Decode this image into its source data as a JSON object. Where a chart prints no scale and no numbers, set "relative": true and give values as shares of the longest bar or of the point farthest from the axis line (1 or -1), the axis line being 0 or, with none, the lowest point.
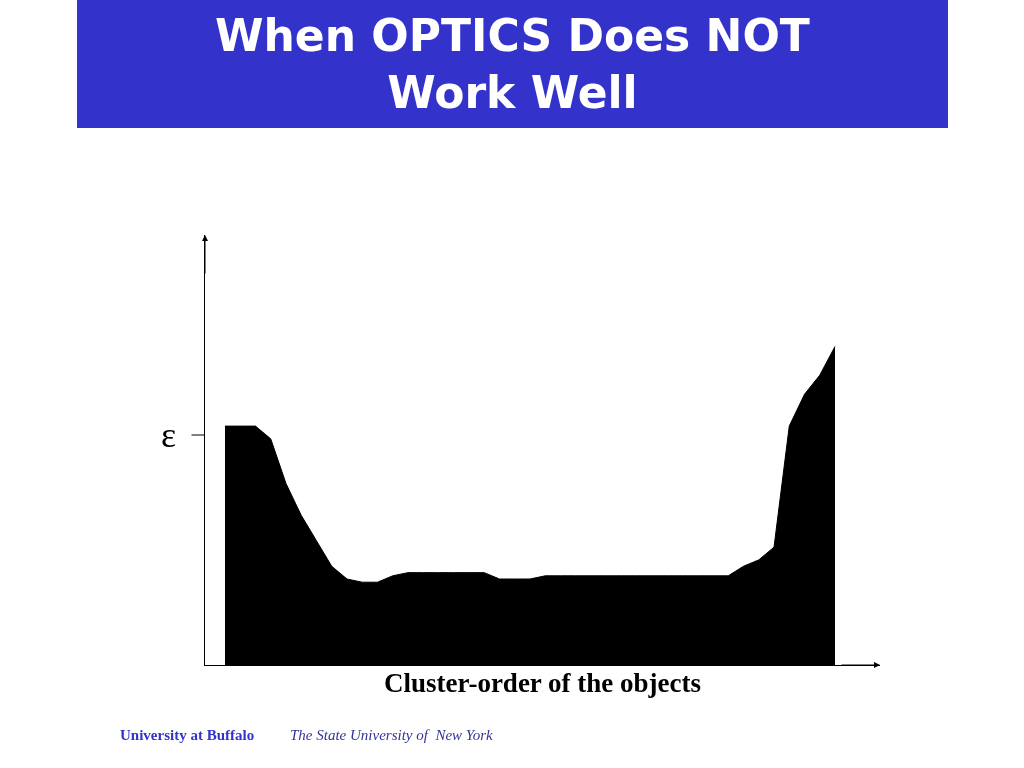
{
  "chart_data": {
    "type": "area",
    "title": "When OPTICS Does NOT Work Well",
    "xlabel": "Cluster-order of the objects",
    "relative": true,
    "color": "#000000",
    "categories": [
      null,
      null,
      null,
      null,
      null,
      null,
      null,
      null,
      null,
      null,
      null,
      null,
      null,
      null,
      null,
      null,
      null,
      null,
      null,
      null,
      null,
      null,
      null,
      null,
      null,
      null,
      null,
      null,
      null,
      null,
      null,
      null,
      null,
      null,
      null,
      null,
      null,
      null,
      null,
      null,
      null
    ],
    "values": [
      0.75,
      0.75,
      0.75,
      0.71,
      0.57,
      0.47,
      0.39,
      0.31,
      0.27,
      0.26,
      0.26,
      0.28,
      0.29,
      0.29,
      0.29,
      0.29,
      0.29,
      0.29,
      0.27,
      0.27,
      0.27,
      0.28,
      0.28,
      0.28,
      0.28,
      0.28,
      0.28,
      0.28,
      0.28,
      0.28,
      0.28,
      0.28,
      0.28,
      0.28,
      0.31,
      0.33,
      0.37,
      0.75,
      0.85,
      0.91,
      1.0
    ],
    "annotations": [
      "ε",
      "University at Buffalo",
      "The State University of  New York"
    ]
  }
}
